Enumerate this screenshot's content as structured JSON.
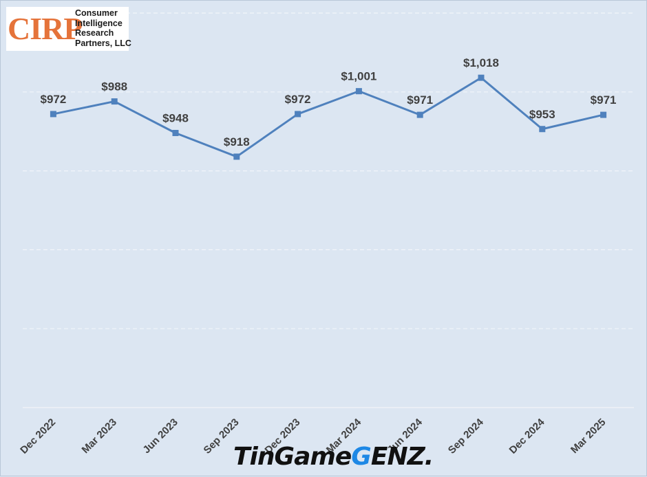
{
  "logo": {
    "mark": "CIRP",
    "lines": [
      "Consumer",
      "Intelligence",
      "Research",
      "Partners, LLC"
    ]
  },
  "watermark": {
    "part1": "TinGame",
    "accent": "G",
    "part2": "ENZ."
  },
  "colors": {
    "background": "#dce6f2",
    "line": "#4f81bd",
    "gridline": "#f2f5fa",
    "logo_mark": "#e5733a",
    "label_text": "#404040"
  },
  "chart_data": {
    "type": "line",
    "categories": [
      "Dec 2022",
      "Mar 2023",
      "Jun 2023",
      "Sep 2023",
      "Dec 2023",
      "Mar 2024",
      "Jun 2024",
      "Sep 2024",
      "Dec 2024",
      "Mar 2025"
    ],
    "series": [
      {
        "values": [
          972,
          988,
          948,
          918,
          972,
          1001,
          971,
          1018,
          953,
          971
        ]
      }
    ],
    "data_labels": [
      "$972",
      "$988",
      "$948",
      "$918",
      "$972",
      "$1,001",
      "$971",
      "$1,018",
      "$953",
      "$971"
    ],
    "ylim": [
      600,
      1100
    ],
    "gridlines": [
      600,
      700,
      800,
      900,
      1000,
      1100
    ],
    "grid": true,
    "xlabel": "",
    "ylabel": "",
    "title": ""
  }
}
